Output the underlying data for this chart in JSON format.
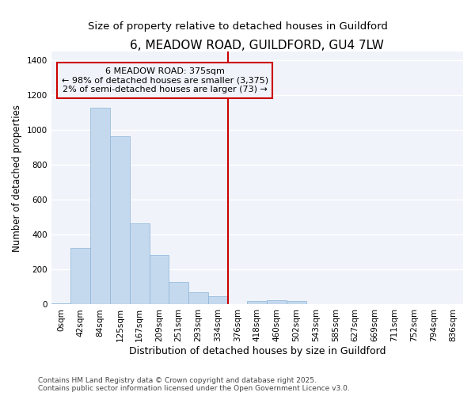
{
  "title": "6, MEADOW ROAD, GUILDFORD, GU4 7LW",
  "subtitle": "Size of property relative to detached houses in Guildford",
  "xlabel": "Distribution of detached houses by size in Guildford",
  "ylabel": "Number of detached properties",
  "bin_labels": [
    "0sqm",
    "42sqm",
    "84sqm",
    "125sqm",
    "167sqm",
    "209sqm",
    "251sqm",
    "293sqm",
    "334sqm",
    "376sqm",
    "418sqm",
    "460sqm",
    "502sqm",
    "543sqm",
    "585sqm",
    "627sqm",
    "669sqm",
    "711sqm",
    "752sqm",
    "794sqm",
    "836sqm"
  ],
  "bar_values": [
    5,
    325,
    1130,
    965,
    465,
    285,
    130,
    70,
    48,
    0,
    20,
    25,
    20,
    0,
    0,
    0,
    0,
    0,
    0,
    0,
    0
  ],
  "bar_color": "#c5d9ee",
  "bar_edge_color": "#8ab4d8",
  "vline_index": 9,
  "vline_color": "#cc0000",
  "annotation_line1": "6 MEADOW ROAD: 375sqm",
  "annotation_line2": "← 98% of detached houses are smaller (3,375)",
  "annotation_line3": "2% of semi-detached houses are larger (73) →",
  "ylim": [
    0,
    1450
  ],
  "yticks": [
    0,
    200,
    400,
    600,
    800,
    1000,
    1200,
    1400
  ],
  "background_color": "#ffffff",
  "plot_bg_color": "#f0f4fa",
  "grid_color": "#ffffff",
  "footer_text": "Contains HM Land Registry data © Crown copyright and database right 2025.\nContains public sector information licensed under the Open Government Licence v3.0.",
  "title_fontsize": 11,
  "subtitle_fontsize": 9.5,
  "xlabel_fontsize": 9,
  "ylabel_fontsize": 8.5,
  "tick_fontsize": 7.5,
  "annot_fontsize": 8,
  "footer_fontsize": 6.5
}
